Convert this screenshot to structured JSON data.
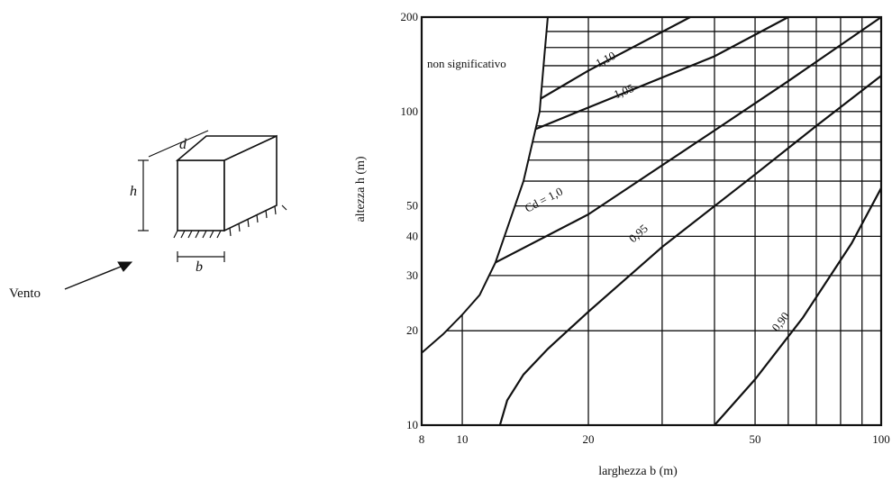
{
  "diagram": {
    "depth_label": "d",
    "height_label": "h",
    "width_label": "b",
    "wind_label": "Vento"
  },
  "chart_data": {
    "type": "line",
    "xlabel": "larghezza b (m)",
    "ylabel": "altezza h (m)",
    "x_scale": "log",
    "y_scale": "log",
    "xlim": [
      8,
      100
    ],
    "ylim": [
      10,
      200
    ],
    "x_ticks": [
      {
        "value": 8,
        "label": "8"
      },
      {
        "value": 10,
        "label": "10"
      },
      {
        "value": 20,
        "label": "20"
      },
      {
        "value": 50,
        "label": "50"
      },
      {
        "value": 100,
        "label": "100"
      }
    ],
    "y_ticks": [
      {
        "value": 10,
        "label": "10"
      },
      {
        "value": 20,
        "label": "20"
      },
      {
        "value": 30,
        "label": "30"
      },
      {
        "value": 40,
        "label": "40"
      },
      {
        "value": 50,
        "label": "50"
      },
      {
        "value": 100,
        "label": "100"
      },
      {
        "value": 200,
        "label": "200"
      }
    ],
    "grid_x": [
      10,
      20,
      30,
      40,
      50,
      60,
      70,
      80,
      90
    ],
    "grid_y": [
      20,
      30,
      40,
      50,
      60,
      70,
      80,
      90,
      100,
      120,
      140,
      160,
      180
    ],
    "region_label": "non significativo",
    "boundary": {
      "x": [
        8,
        9,
        10,
        11,
        12,
        14,
        15.3,
        15.7,
        16
      ],
      "y": [
        17,
        19.5,
        22.5,
        26,
        33,
        60,
        100,
        150,
        200
      ]
    },
    "series": [
      {
        "name": "1,10",
        "label_text": "1,10",
        "x": [
          15.4,
          20,
          35
        ],
        "y": [
          110,
          135,
          200
        ]
      },
      {
        "name": "1,05",
        "label_text": "1,05",
        "x": [
          15,
          20,
          40,
          60
        ],
        "y": [
          88,
          103,
          150,
          200
        ]
      },
      {
        "name": "Cd = 1,0",
        "label_text": "Cd = 1,0",
        "x": [
          12,
          20,
          40,
          60,
          100
        ],
        "y": [
          33,
          47,
          87,
          125,
          200
        ]
      },
      {
        "name": "0,95",
        "label_text": "0,95",
        "x": [
          12.3,
          12.8,
          14,
          16,
          20,
          30,
          50,
          70,
          100
        ],
        "y": [
          10,
          12,
          14.5,
          17.5,
          23,
          37,
          63,
          90,
          130
        ]
      },
      {
        "name": "0,90",
        "label_text": "0,90",
        "x": [
          40,
          50,
          65,
          85,
          100
        ],
        "y": [
          10,
          14,
          22,
          38,
          57
        ]
      }
    ]
  }
}
